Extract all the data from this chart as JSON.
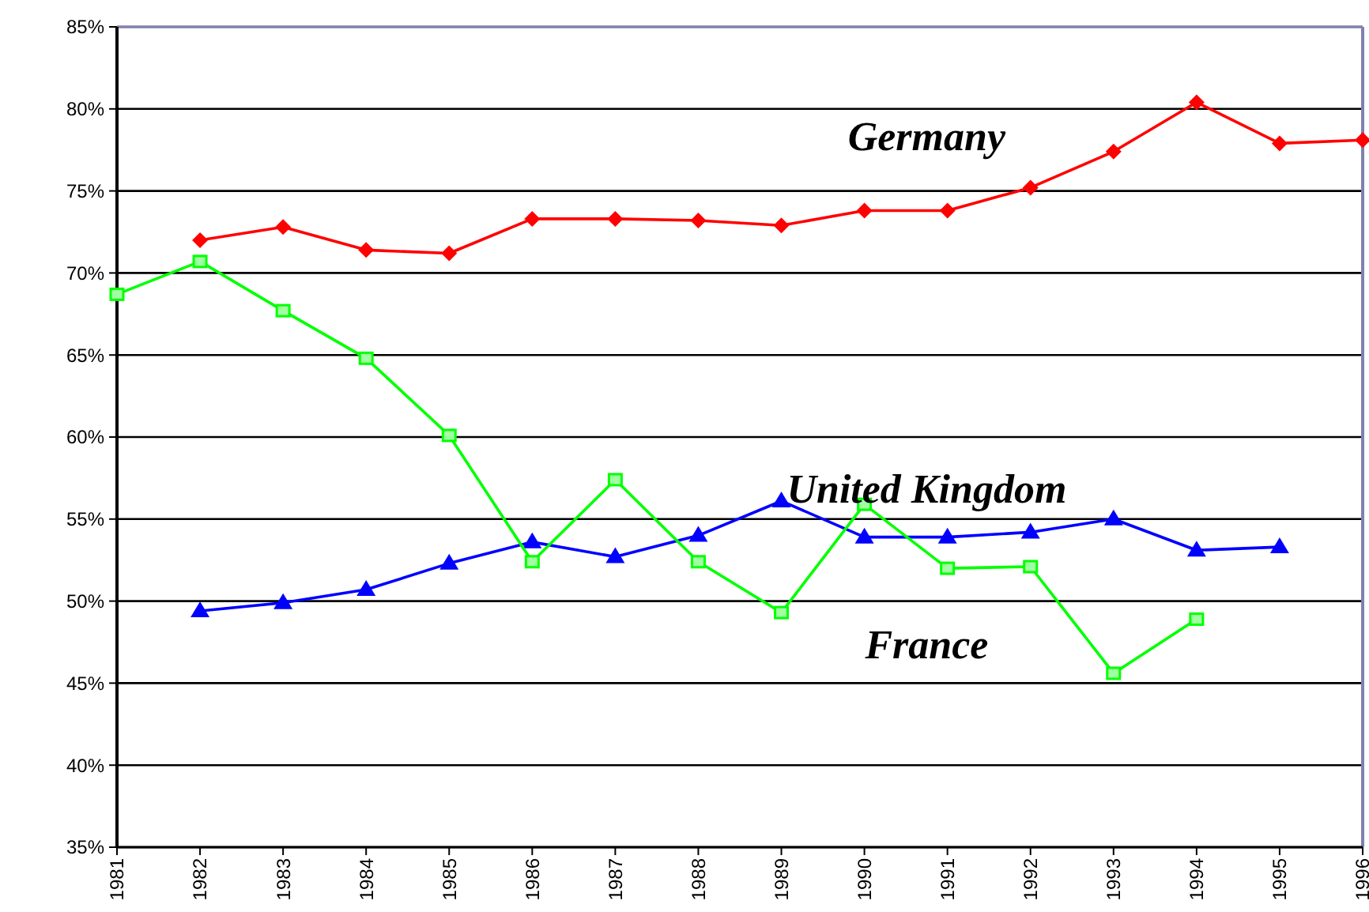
{
  "chart_data": {
    "type": "line",
    "x": [
      1981,
      1982,
      1983,
      1984,
      1985,
      1986,
      1987,
      1988,
      1989,
      1990,
      1991,
      1992,
      1993,
      1994,
      1995,
      1996
    ],
    "series": [
      {
        "name": "Germany",
        "color": "#ff0000",
        "marker": "diamond",
        "values": [
          null,
          72.0,
          72.8,
          71.4,
          71.2,
          73.3,
          73.3,
          73.2,
          72.9,
          73.8,
          73.8,
          75.2,
          77.4,
          80.4,
          77.9,
          78.1
        ]
      },
      {
        "name": "United Kingdom",
        "color": "#0000ff",
        "marker": "triangle",
        "values": [
          null,
          49.4,
          49.9,
          50.7,
          52.3,
          53.6,
          52.7,
          54.0,
          56.1,
          53.9,
          53.9,
          54.2,
          55.0,
          53.1,
          53.3,
          null
        ]
      },
      {
        "name": "France",
        "color": "#00ff00",
        "marker": "square",
        "values": [
          68.7,
          70.7,
          67.7,
          64.8,
          60.1,
          52.4,
          57.4,
          52.4,
          49.3,
          55.9,
          52.0,
          52.1,
          45.6,
          48.9,
          null,
          null
        ]
      }
    ],
    "xlim": [
      1981,
      1996
    ],
    "xticks": [
      1981,
      1982,
      1983,
      1984,
      1985,
      1986,
      1987,
      1988,
      1989,
      1990,
      1991,
      1992,
      1993,
      1994,
      1995,
      1996
    ],
    "ylim": [
      35,
      85
    ],
    "yticks": [
      {
        "value": 35,
        "label": "35%"
      },
      {
        "value": 40,
        "label": "40%"
      },
      {
        "value": 45,
        "label": "45%"
      },
      {
        "value": 50,
        "label": "50%"
      },
      {
        "value": 55,
        "label": "55%"
      },
      {
        "value": 60,
        "label": "60%"
      },
      {
        "value": 65,
        "label": "65%"
      },
      {
        "value": 70,
        "label": "70%"
      },
      {
        "value": 75,
        "label": "75%"
      },
      {
        "value": 80,
        "label": "80%"
      },
      {
        "value": 85,
        "label": "85%"
      }
    ],
    "grid": "y",
    "legend": false
  }
}
